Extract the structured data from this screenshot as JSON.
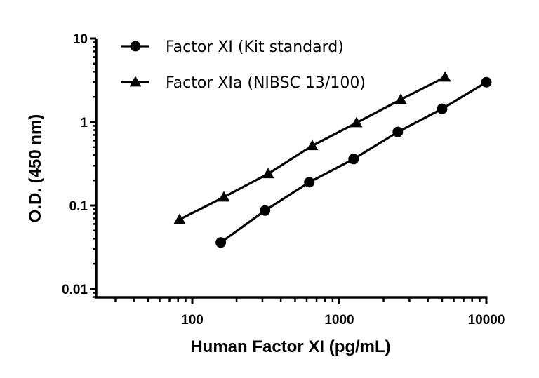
{
  "chart_data": {
    "type": "line",
    "title": "",
    "xlabel": "Human Factor XI (pg/mL)",
    "ylabel": "O.D. (450 nm)",
    "xscale": "log",
    "yscale": "log",
    "xlim": [
      22,
      10000
    ],
    "ylim": [
      0.008,
      10
    ],
    "x_ticks": [
      100,
      1000,
      10000
    ],
    "x_tick_labels": [
      "100",
      "1000",
      "10000"
    ],
    "y_ticks": [
      0.01,
      0.1,
      1,
      10
    ],
    "y_tick_labels": [
      "0.01",
      "0.1",
      "1",
      "10"
    ],
    "grid": false,
    "legend_position": "upper left",
    "series": [
      {
        "name": "Factor XI (Kit standard)",
        "marker": "circle",
        "x": [
          156.25,
          312.5,
          625,
          1250,
          2500,
          5000,
          10000
        ],
        "y": [
          0.036,
          0.087,
          0.19,
          0.36,
          0.76,
          1.44,
          3.0
        ]
      },
      {
        "name": "Factor XIa (NIBSC 13/100)",
        "marker": "triangle",
        "x": [
          82,
          164,
          328,
          655,
          1310,
          2620,
          5240
        ],
        "y": [
          0.068,
          0.126,
          0.24,
          0.52,
          0.98,
          1.86,
          3.45
        ]
      }
    ]
  },
  "colors": {
    "series": "#000000",
    "axis": "#000000",
    "background": "#ffffff"
  }
}
